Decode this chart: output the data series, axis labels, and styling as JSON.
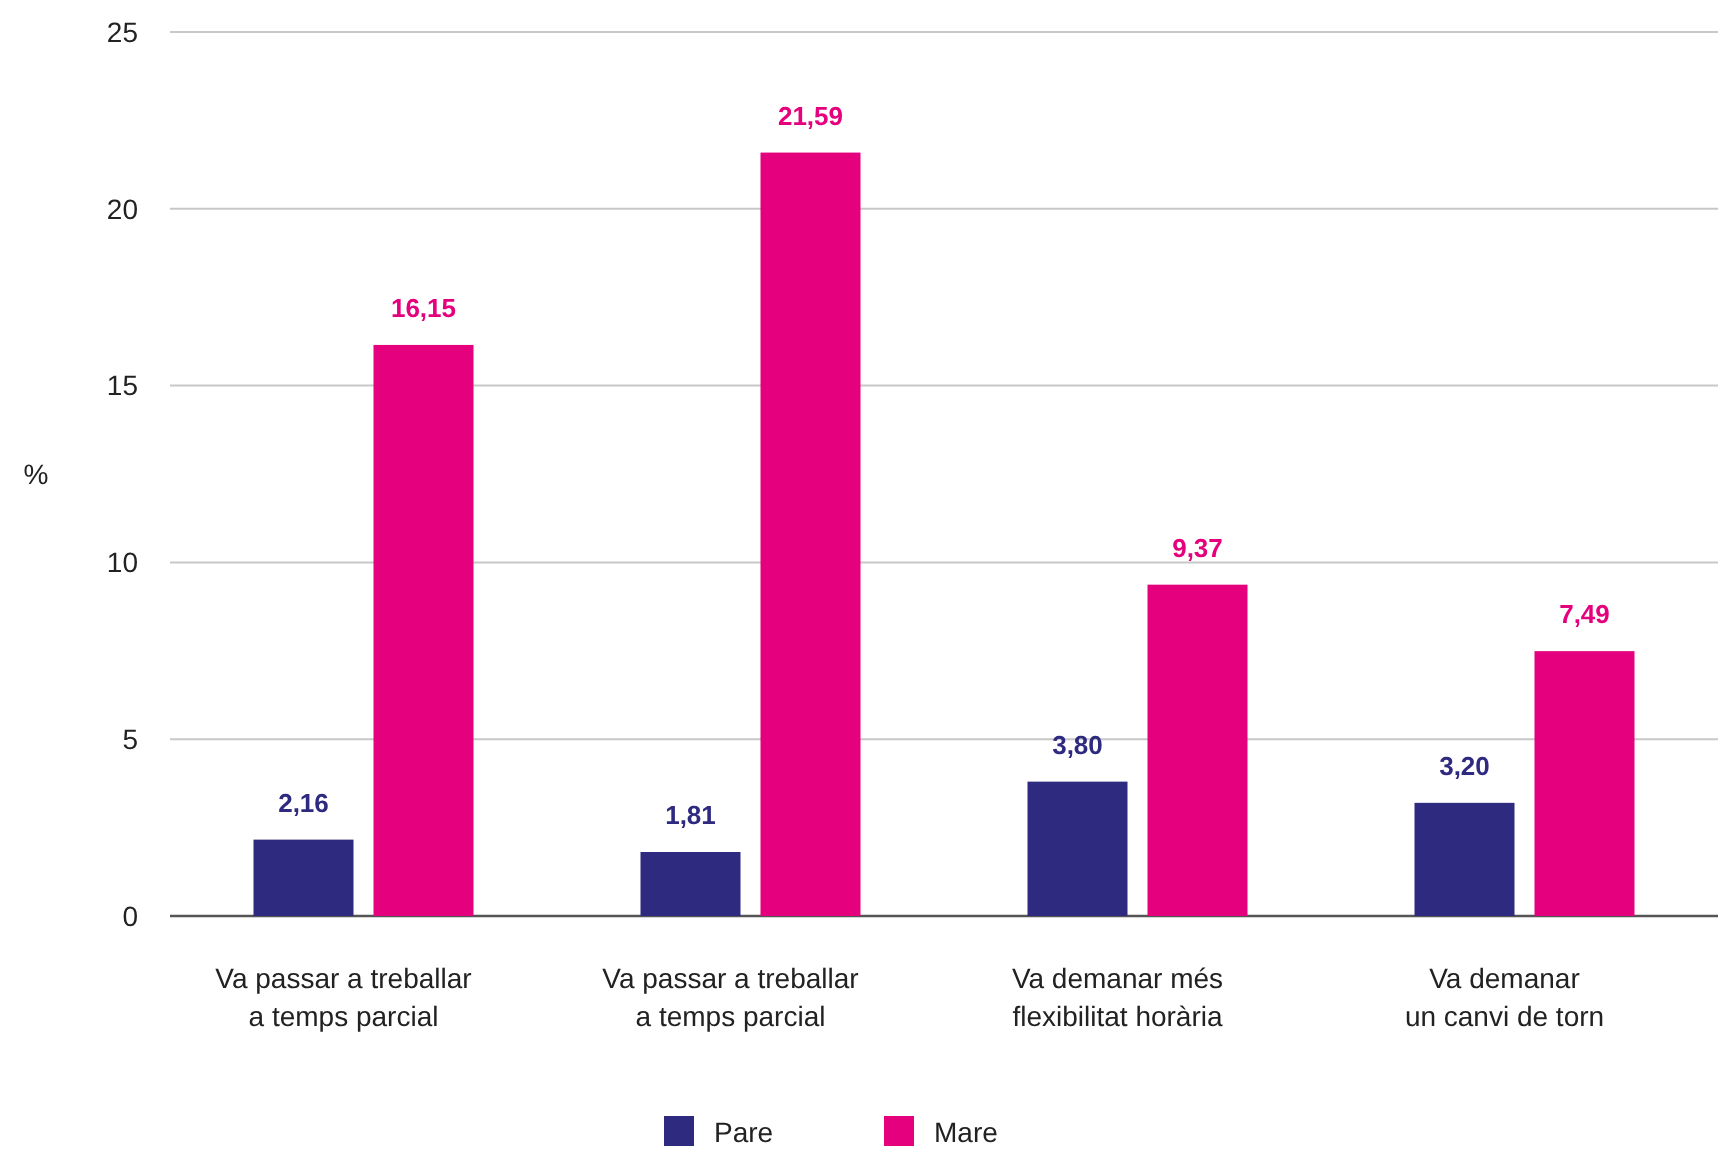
{
  "chart_data": {
    "type": "bar",
    "ylabel": "%",
    "categories": [
      "Va passar a treballar\na temps parcial",
      "Va passar a treballar\na temps parcial",
      "Va demanar més\nflexibilitat horària",
      "Va demanar\nun canvi de torn"
    ],
    "series": [
      {
        "name": "Pare",
        "color": "#2e2a80",
        "values": [
          2.16,
          1.81,
          3.8,
          3.2
        ],
        "value_labels": [
          "2,16",
          "1,81",
          "3,80",
          "3,20"
        ]
      },
      {
        "name": "Mare",
        "color": "#e5007d",
        "values": [
          16.15,
          21.59,
          9.37,
          7.49
        ],
        "value_labels": [
          "16,15",
          "21,59",
          "9,37",
          "7,49"
        ]
      }
    ],
    "ylim": [
      0,
      25
    ],
    "yticks": [
      0,
      5,
      10,
      15,
      20,
      25
    ],
    "grid": "y",
    "legend": "bottom"
  }
}
